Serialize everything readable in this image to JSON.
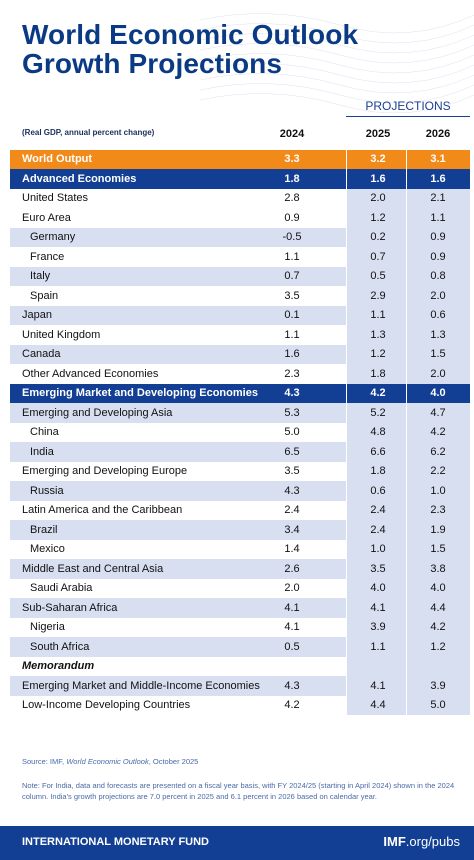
{
  "title_line1": "World Economic Outlook",
  "title_line2": "Growth Projections",
  "projections_label": "PROJECTIONS",
  "subtitle": "(Real GDP, annual percent change)",
  "years": [
    "2024",
    "2025",
    "2026"
  ],
  "rows": [
    {
      "label": "World Output",
      "values": [
        "3.3",
        "3.2",
        "3.1"
      ],
      "style": "orange",
      "indent": 0
    },
    {
      "label": "Advanced Economies",
      "values": [
        "1.8",
        "1.6",
        "1.6"
      ],
      "style": "navy",
      "indent": 0
    },
    {
      "label": "United States",
      "values": [
        "2.8",
        "2.0",
        "2.1"
      ],
      "style": "light",
      "indent": 0
    },
    {
      "label": "Euro Area",
      "values": [
        "0.9",
        "1.2",
        "1.1"
      ],
      "style": "light",
      "indent": 0
    },
    {
      "label": "Germany",
      "values": [
        "-0.5",
        "0.2",
        "0.9"
      ],
      "style": "shaded",
      "indent": 1
    },
    {
      "label": "France",
      "values": [
        "1.1",
        "0.7",
        "0.9"
      ],
      "style": "light",
      "indent": 1
    },
    {
      "label": "Italy",
      "values": [
        "0.7",
        "0.5",
        "0.8"
      ],
      "style": "shaded",
      "indent": 1
    },
    {
      "label": "Spain",
      "values": [
        "3.5",
        "2.9",
        "2.0"
      ],
      "style": "light",
      "indent": 1
    },
    {
      "label": "Japan",
      "values": [
        "0.1",
        "1.1",
        "0.6"
      ],
      "style": "shaded",
      "indent": 0
    },
    {
      "label": "United Kingdom",
      "values": [
        "1.1",
        "1.3",
        "1.3"
      ],
      "style": "light",
      "indent": 0
    },
    {
      "label": "Canada",
      "values": [
        "1.6",
        "1.2",
        "1.5"
      ],
      "style": "shaded",
      "indent": 0
    },
    {
      "label": "Other Advanced Economies",
      "values": [
        "2.3",
        "1.8",
        "2.0"
      ],
      "style": "light",
      "indent": 0
    },
    {
      "label": "Emerging Market and Developing Economies",
      "values": [
        "4.3",
        "4.2",
        "4.0"
      ],
      "style": "navy",
      "indent": 0
    },
    {
      "label": "Emerging and Developing Asia",
      "values": [
        "5.3",
        "5.2",
        "4.7"
      ],
      "style": "shaded",
      "indent": 0
    },
    {
      "label": "China",
      "values": [
        "5.0",
        "4.8",
        "4.2"
      ],
      "style": "light",
      "indent": 1
    },
    {
      "label": "India",
      "values": [
        "6.5",
        "6.6",
        "6.2"
      ],
      "style": "shaded",
      "indent": 1
    },
    {
      "label": "Emerging and Developing Europe",
      "values": [
        "3.5",
        "1.8",
        "2.2"
      ],
      "style": "light",
      "indent": 0
    },
    {
      "label": "Russia",
      "values": [
        "4.3",
        "0.6",
        "1.0"
      ],
      "style": "shaded",
      "indent": 1
    },
    {
      "label": "Latin America and the Caribbean",
      "values": [
        "2.4",
        "2.4",
        "2.3"
      ],
      "style": "light",
      "indent": 0
    },
    {
      "label": "Brazil",
      "values": [
        "3.4",
        "2.4",
        "1.9"
      ],
      "style": "shaded",
      "indent": 1
    },
    {
      "label": "Mexico",
      "values": [
        "1.4",
        "1.0",
        "1.5"
      ],
      "style": "light",
      "indent": 1
    },
    {
      "label": "Middle East and Central Asia",
      "values": [
        "2.6",
        "3.5",
        "3.8"
      ],
      "style": "shaded",
      "indent": 0
    },
    {
      "label": "Saudi Arabia",
      "values": [
        "2.0",
        "4.0",
        "4.0"
      ],
      "style": "light",
      "indent": 1
    },
    {
      "label": "Sub-Saharan Africa",
      "values": [
        "4.1",
        "4.1",
        "4.4"
      ],
      "style": "shaded",
      "indent": 0
    },
    {
      "label": "Nigeria",
      "values": [
        "4.1",
        "3.9",
        "4.2"
      ],
      "style": "light",
      "indent": 1
    },
    {
      "label": "South Africa",
      "values": [
        "0.5",
        "1.1",
        "1.2"
      ],
      "style": "shaded",
      "indent": 1
    },
    {
      "label": "Memorandum",
      "values": [
        "",
        "",
        ""
      ],
      "style": "memo",
      "indent": 0
    },
    {
      "label": "Emerging Market and Middle-Income Economies",
      "values": [
        "4.3",
        "4.1",
        "3.9"
      ],
      "style": "shaded",
      "indent": 0
    },
    {
      "label": "Low-Income Developing Countries",
      "values": [
        "4.2",
        "4.4",
        "5.0"
      ],
      "style": "light",
      "indent": 0
    }
  ],
  "source_prefix": "Source: IMF, ",
  "source_italic": "World Economic Outlook",
  "source_suffix": ", October 2025",
  "note": "Note: For India, data and forecasts are presented on a fiscal year basis, with FY 2024/25 (starting in April 2024) shown in the 2024 column. India's growth projections are 7.0 percent in 2025 and 6.1 percent in 2026 based on calendar year.",
  "footer_org": "INTERNATIONAL MONETARY FUND",
  "footer_url_bold": "IMF",
  "footer_url_rest": ".org/pubs",
  "colors": {
    "navy": "#123f94",
    "orange": "#f28a1a",
    "shade": "#d8dff0",
    "title": "#0b3a84"
  }
}
